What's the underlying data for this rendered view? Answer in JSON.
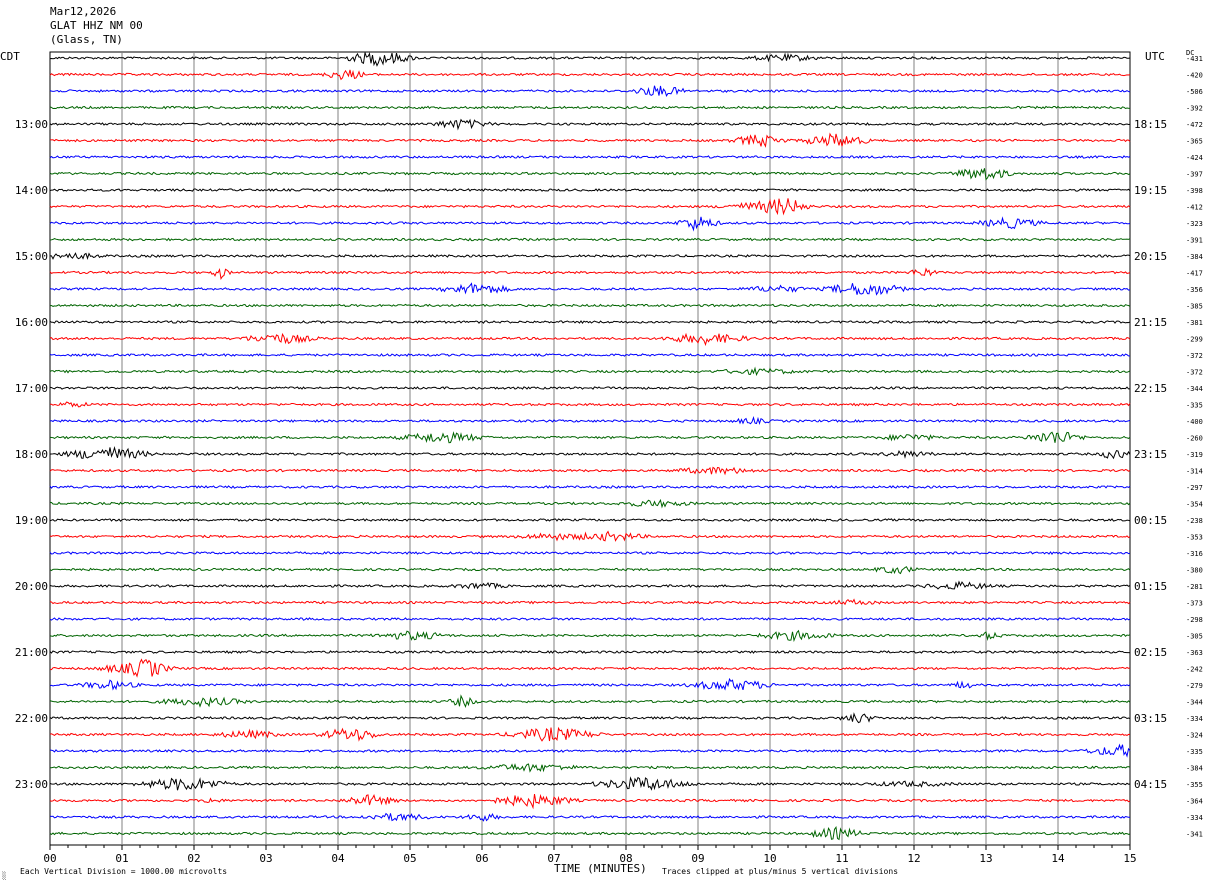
{
  "header": {
    "date": "Mar12,2026",
    "station": "GLAT HHZ NM 00",
    "location": "(Glass, TN)"
  },
  "left_timezone": "CDT",
  "right_timezone": "UTC",
  "dc_label": "DC",
  "footer": {
    "scale_note": "Each Vertical Division = 1000.00 microvolts",
    "clip_note": "Traces clipped at plus/minus 5 vertical divisions",
    "corner_mark": "░"
  },
  "colors": {
    "trace_cycle": [
      "#000000",
      "#ff0000",
      "#0000ff",
      "#006400"
    ],
    "grid": "#808080"
  },
  "chart_data": {
    "type": "line",
    "xlabel": "TIME (MINUTES)",
    "x_ticks": [
      "00",
      "01",
      "02",
      "03",
      "04",
      "05",
      "06",
      "07",
      "08",
      "09",
      "10",
      "11",
      "12",
      "13",
      "14",
      "15"
    ],
    "xlim": [
      0,
      15
    ],
    "left_hour_labels": [
      "13:00",
      "14:00",
      "15:00",
      "16:00",
      "17:00",
      "18:00",
      "19:00",
      "20:00",
      "21:00",
      "22:00",
      "23:00"
    ],
    "right_hour_labels": [
      "18:15",
      "19:15",
      "20:15",
      "21:15",
      "22:15",
      "23:15",
      "00:15",
      "01:15",
      "02:15",
      "03:15",
      "04:15"
    ],
    "dc_offsets": [
      "-431",
      "-420",
      "-506",
      "-392",
      "-472",
      "-365",
      "-424",
      "-397",
      "-398",
      "-412",
      "-323",
      "-391",
      "-384",
      "-417",
      "-356",
      "-385",
      "-381",
      "-299",
      "-372",
      "-372",
      "-344",
      "-335",
      "-400",
      "-260",
      "-319",
      "-314",
      "-297",
      "-354",
      "-238",
      "-353",
      "-316",
      "-380",
      "-281",
      "-373",
      "-298",
      "-305",
      "-363",
      "-242",
      "-279",
      "-344",
      "-334",
      "-324",
      "-335",
      "-384",
      "-355",
      "-364",
      "-334",
      "-341"
    ],
    "trace_count": 48,
    "minutes_per_trace": 15,
    "traces_per_hour": 4,
    "first_labeled_trace": 4
  }
}
